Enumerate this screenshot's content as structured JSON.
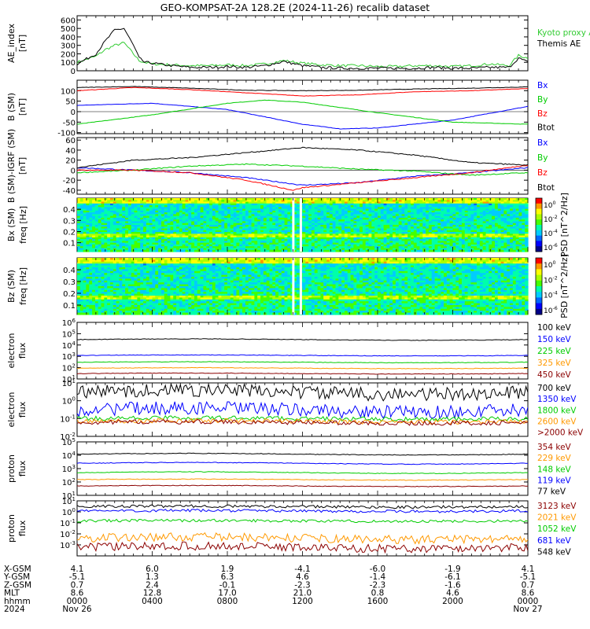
{
  "title": "GEO-KOMPSAT-2A 128.2E (2024-11-26) recalib dataset",
  "chart_data": [
    {
      "id": "ae",
      "type": "line",
      "ylabel": "AE_index [nT]",
      "yticks": [
        "0",
        "100",
        "200",
        "300",
        "400",
        "500",
        "600"
      ],
      "ylim": [
        0,
        650
      ],
      "series": [
        {
          "name": "Kyoto proxy AE",
          "color": "#33cc33",
          "x": [
            0,
            1,
            1.5,
            2,
            2.5,
            3,
            3.3,
            3.6,
            4,
            5,
            6,
            7,
            8,
            9,
            10,
            11,
            12,
            13,
            14,
            15,
            16,
            17,
            18,
            19,
            20,
            21,
            22,
            23,
            23.5,
            24
          ],
          "y": [
            100,
            170,
            250,
            300,
            330,
            200,
            120,
            100,
            80,
            70,
            60,
            60,
            70,
            60,
            80,
            120,
            90,
            70,
            60,
            60,
            50,
            50,
            60,
            60,
            50,
            60,
            80,
            60,
            180,
            150
          ]
        },
        {
          "name": "Themis AE",
          "color": "#000000",
          "x": [
            0,
            1,
            1.5,
            2,
            2.5,
            3,
            3.3,
            3.6,
            4,
            5,
            6,
            7,
            8,
            9,
            10,
            11,
            12,
            13,
            14,
            15,
            16,
            17,
            18,
            19,
            20,
            21,
            22,
            23,
            23.5,
            24
          ],
          "y": [
            80,
            200,
            350,
            480,
            500,
            300,
            150,
            100,
            90,
            60,
            40,
            40,
            50,
            40,
            60,
            110,
            60,
            40,
            30,
            30,
            30,
            30,
            30,
            40,
            30,
            30,
            40,
            40,
            150,
            100
          ]
        }
      ]
    },
    {
      "id": "b",
      "type": "line",
      "ylabel": "B (SM) [nT]",
      "yticks": [
        "-100",
        "-50",
        "0",
        "50",
        "100"
      ],
      "ylim": [
        -105,
        150
      ],
      "series": [
        {
          "name": "Bx",
          "color": "#0000ff",
          "x": [
            0,
            4,
            8,
            12,
            14,
            16,
            20,
            24
          ],
          "y": [
            30,
            40,
            10,
            -60,
            -82,
            -78,
            -40,
            25
          ]
        },
        {
          "name": "By",
          "color": "#00cc00",
          "x": [
            0,
            4,
            8,
            10,
            12,
            16,
            20,
            24
          ],
          "y": [
            -60,
            -15,
            40,
            55,
            45,
            -5,
            -50,
            -60
          ]
        },
        {
          "name": "Bz",
          "color": "#ff0000",
          "x": [
            0,
            3,
            6,
            9,
            12,
            15,
            18,
            21,
            24
          ],
          "y": [
            100,
            115,
            105,
            90,
            75,
            80,
            95,
            100,
            110
          ]
        },
        {
          "name": "Btot",
          "color": "#000000",
          "x": [
            0,
            3,
            6,
            9,
            12,
            15,
            18,
            21,
            24
          ],
          "y": [
            115,
            120,
            112,
            102,
            100,
            102,
            108,
            112,
            118
          ]
        }
      ]
    },
    {
      "id": "dbrf",
      "type": "line",
      "ylabel": "B (SM)-IGRF (SM) [nT]",
      "yticks": [
        "-40",
        "-20",
        "0",
        "20",
        "40",
        "60"
      ],
      "ylim": [
        -48,
        65
      ],
      "series": [
        {
          "name": "Bx",
          "color": "#0000ff",
          "x": [
            0,
            3,
            6,
            9,
            12,
            15,
            18,
            21,
            24
          ],
          "y": [
            5,
            0,
            -5,
            -15,
            -30,
            -25,
            -12,
            -5,
            5
          ]
        },
        {
          "name": "By",
          "color": "#00cc00",
          "x": [
            0,
            3,
            6,
            9,
            12,
            15,
            18,
            21,
            24
          ],
          "y": [
            -5,
            0,
            8,
            12,
            8,
            2,
            -2,
            -10,
            -5
          ]
        },
        {
          "name": "Bz",
          "color": "#ff0000",
          "x": [
            0,
            3,
            6,
            9,
            11.5,
            12,
            15,
            18,
            21,
            24
          ],
          "y": [
            0,
            0,
            -5,
            -20,
            -40,
            -35,
            -25,
            -15,
            -5,
            10
          ]
        },
        {
          "name": "Btot",
          "color": "#000000",
          "x": [
            0,
            3,
            6,
            9,
            12,
            15,
            18,
            21,
            24
          ],
          "y": [
            5,
            20,
            25,
            35,
            45,
            40,
            30,
            15,
            10
          ]
        }
      ]
    },
    {
      "id": "bxspec",
      "type": "heatmap",
      "ylabel": "Bx (SM) freq [Hz]",
      "yticks": [
        "0.1",
        "0.2",
        "0.3",
        "0.4"
      ],
      "ylim": [
        0.02,
        0.5
      ],
      "colorbar_label": "PSD [nT^2/Hz]",
      "colorbar_ticks": [
        "10^0",
        "10^-2",
        "10^-4",
        "10^-6"
      ]
    },
    {
      "id": "bzspec",
      "type": "heatmap",
      "ylabel": "Bz (SM) freq [Hz]",
      "yticks": [
        "0.1",
        "0.2",
        "0.3",
        "0.4"
      ],
      "ylim": [
        0.02,
        0.5
      ],
      "colorbar_label": "PSD [nT^2/Hz]",
      "colorbar_ticks": [
        "10^0",
        "10^-2",
        "10^-4",
        "10^-6"
      ]
    },
    {
      "id": "ef1",
      "type": "line",
      "log": true,
      "ylabel": "electron flux",
      "ylim_exp": [
        1,
        6
      ],
      "yticks": [
        "10^1",
        "10^2",
        "10^3",
        "10^4",
        "10^5",
        "10^6"
      ],
      "series": [
        {
          "name": "100 keV",
          "color": "#000000",
          "y0": 30000,
          "drift": 0.15
        },
        {
          "name": "150 keV",
          "color": "#0000ff",
          "y0": 1200,
          "drift": 0.1
        },
        {
          "name": "225 keV",
          "color": "#00cc00",
          "y0": 300,
          "drift": 0.1
        },
        {
          "name": "325 keV",
          "color": "#ff9900",
          "y0": 90,
          "drift": 0.1
        },
        {
          "name": "450 keV",
          "color": "#8b0000",
          "y0": 30,
          "drift": 0.1
        }
      ]
    },
    {
      "id": "ef2",
      "type": "line",
      "log": true,
      "ylabel": "electron flux",
      "ylim_exp": [
        -2,
        1
      ],
      "yticks": [
        "10^-2",
        "10^-1",
        "10^0",
        "10^1"
      ],
      "series": [
        {
          "name": "700 keV",
          "color": "#000000",
          "y0": 3,
          "drift": 0.3
        },
        {
          "name": "1350 keV",
          "color": "#0000ff",
          "y0": 0.3,
          "drift": 0.3
        },
        {
          "name": "1800 keV",
          "color": "#00cc00",
          "y0": 0.1,
          "drift": 0.1
        },
        {
          "name": "2600 keV",
          "color": "#ff9900",
          "y0": 0.07,
          "drift": 0.1
        },
        {
          "name": ">2000 keV",
          "color": "#8b0000",
          "y0": 0.06,
          "drift": 0.1
        }
      ]
    },
    {
      "id": "pf1",
      "type": "line",
      "log": true,
      "ylabel": "proton flux",
      "ylim_exp": [
        1,
        5
      ],
      "yticks": [
        "10^1",
        "10^2",
        "10^3",
        "10^4",
        "10^5"
      ],
      "series": [
        {
          "name": "354 keV",
          "color": "#8b0000",
          "y0": 50,
          "drift": 0.1
        },
        {
          "name": "229 keV",
          "color": "#ff9900",
          "y0": 150,
          "drift": 0.1
        },
        {
          "name": "148 keV",
          "color": "#00cc00",
          "y0": 500,
          "drift": 0.15
        },
        {
          "name": "119 keV",
          "color": "#0000ff",
          "y0": 2500,
          "drift": 0.15
        },
        {
          "name": "77 keV",
          "color": "#000000",
          "y0": 12000,
          "drift": 0.15
        }
      ]
    },
    {
      "id": "pf2",
      "type": "line",
      "log": true,
      "ylabel": "proton flux",
      "ylim_exp": [
        -4,
        1
      ],
      "yticks": [
        "10^-3",
        "10^-2",
        "10^-1",
        "10^0",
        "10^1"
      ],
      "series": [
        {
          "name": "3123 keV",
          "color": "#8b0000",
          "y0": 0.0006,
          "drift": 0.3
        },
        {
          "name": "2021 keV",
          "color": "#ff9900",
          "y0": 0.004,
          "drift": 0.3
        },
        {
          "name": "1052 keV",
          "color": "#00cc00",
          "y0": 0.15,
          "drift": 0.1
        },
        {
          "name": "681 keV",
          "color": "#0000ff",
          "y0": 1.2,
          "drift": 0.1
        },
        {
          "name": "548 keV",
          "color": "#000000",
          "y0": 3,
          "drift": 0.1
        }
      ]
    }
  ],
  "ephemeris": {
    "labels": [
      "X-GSM",
      "Y-GSM",
      "Z-GSM",
      "MLT",
      "hhmm",
      "2024"
    ],
    "columns": [
      [
        "4.1",
        "-5.1",
        "0.7",
        "8.6",
        "0000",
        "Nov 26"
      ],
      [
        "6.0",
        "1.3",
        "2.4",
        "12.8",
        "0400",
        ""
      ],
      [
        "1.9",
        "6.3",
        "-0.1",
        "17.0",
        "0800",
        ""
      ],
      [
        "-4.1",
        "4.6",
        "-2.3",
        "21.0",
        "1200",
        ""
      ],
      [
        "-6.0",
        "-1.4",
        "-2.3",
        "0.8",
        "1600",
        ""
      ],
      [
        "-1.9",
        "-6.1",
        "-1.6",
        "4.6",
        "2000",
        ""
      ],
      [
        "4.1",
        "-5.1",
        "0.7",
        "8.6",
        "0000",
        "Nov 27"
      ]
    ]
  }
}
